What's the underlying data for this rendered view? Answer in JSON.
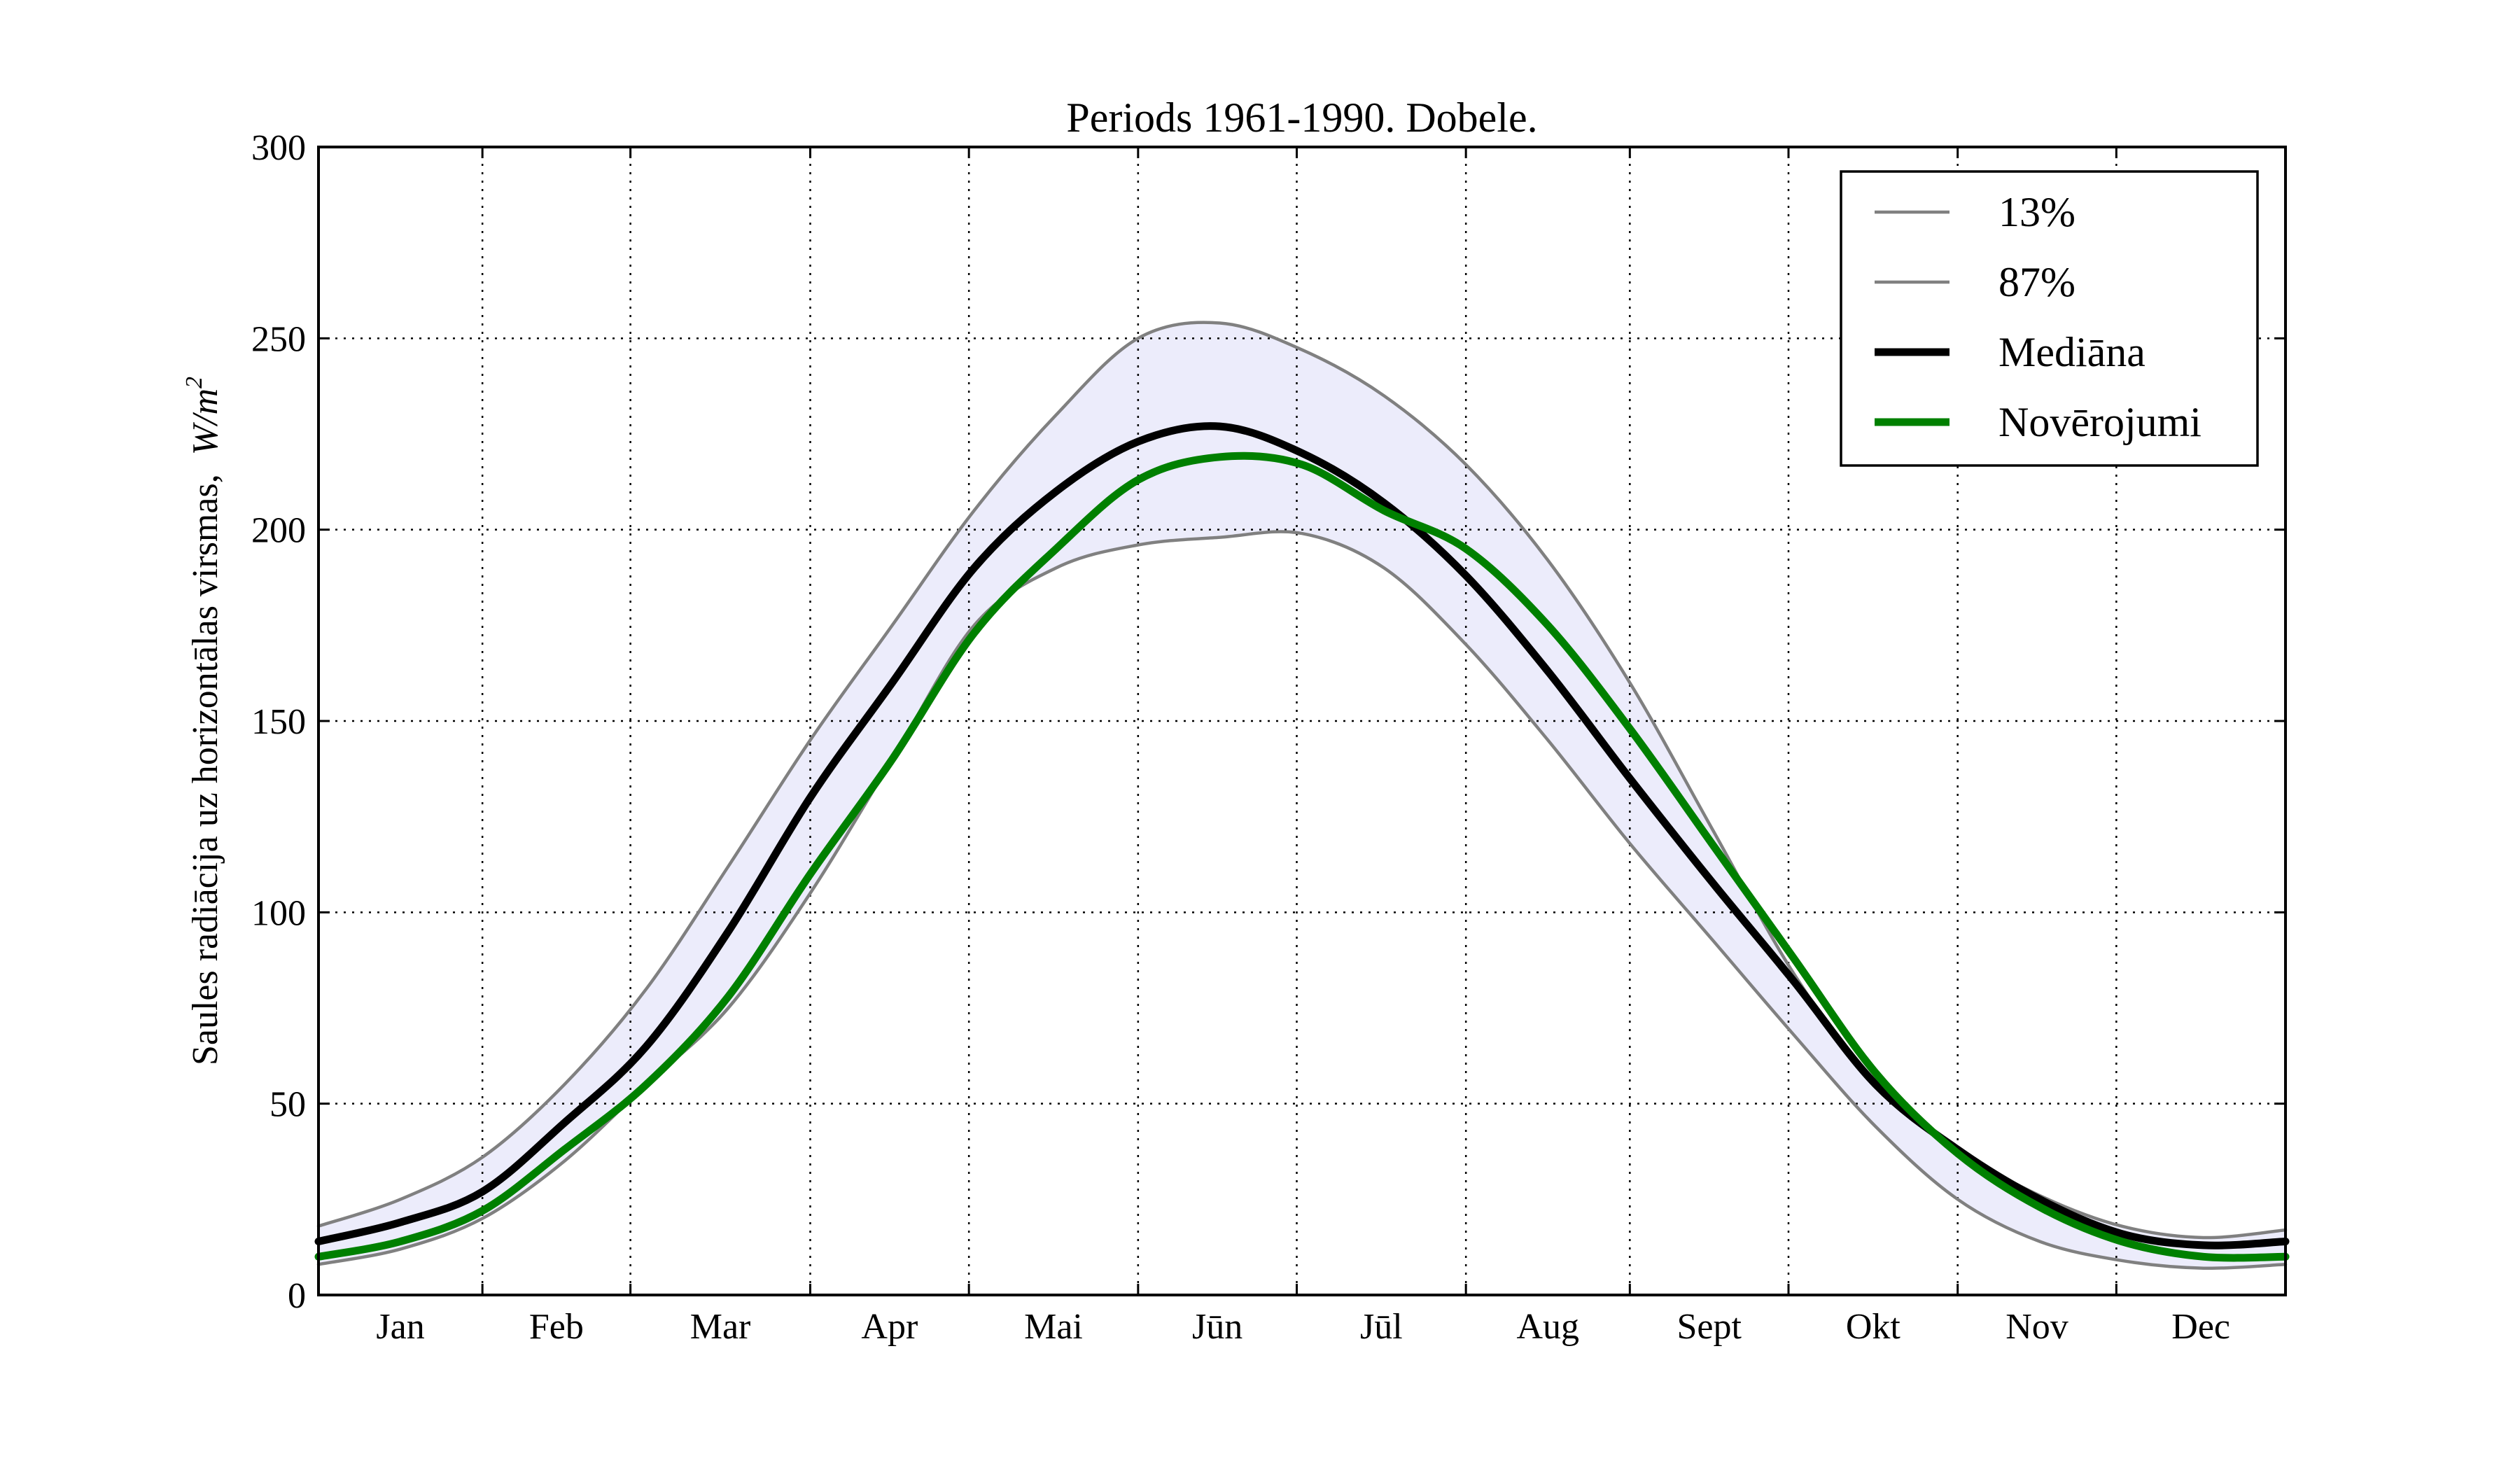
{
  "chart_data": {
    "type": "line",
    "title": "Periods 1961-1990. Dobele.",
    "ylabel": "Saules radiācija uz horizontālas virsmas,",
    "ylabel_unit": "W/m",
    "ylabel_unit_exp": "2",
    "ylim": [
      0,
      300
    ],
    "xlim": [
      0,
      12
    ],
    "yticks": [
      0,
      50,
      100,
      150,
      200,
      250,
      300
    ],
    "month_boundaries": [
      0,
      1,
      1.903,
      3,
      3.968,
      5,
      5.968,
      7,
      8,
      8.968,
      10,
      10.968,
      12
    ],
    "months": [
      "Jan",
      "Feb",
      "Mar",
      "Apr",
      "Mai",
      "Jūn",
      "Jūl",
      "Aug",
      "Sept",
      "Okt",
      "Nov",
      "Dec"
    ],
    "grid": true,
    "legend_position": "top-right",
    "band": {
      "lower_series": "13%",
      "upper_series": "87%",
      "color": "#ececfb"
    },
    "x": [
      0,
      0.5,
      1,
      1.5,
      2,
      2.5,
      3,
      3.5,
      4,
      4.5,
      5,
      5.5,
      6,
      6.5,
      7,
      7.5,
      8,
      8.5,
      9,
      9.5,
      10,
      10.5,
      11,
      11.5,
      12
    ],
    "series": [
      {
        "name": "13%",
        "color": "#808080",
        "width": 4.5,
        "values": [
          8,
          12,
          20,
          35,
          55,
          75,
          105,
          140,
          175,
          190,
          196,
          198,
          199,
          190,
          170,
          145,
          118,
          93,
          68,
          44,
          25,
          14,
          9,
          7,
          8
        ]
      },
      {
        "name": "87%",
        "color": "#808080",
        "width": 4.5,
        "values": [
          18,
          25,
          36,
          55,
          80,
          112,
          145,
          175,
          205,
          230,
          250,
          254,
          247,
          235,
          217,
          192,
          160,
          122,
          84,
          55,
          38,
          26,
          18,
          15,
          17
        ]
      },
      {
        "name": "Mediāna",
        "color": "#000000",
        "width": 11,
        "values": [
          14,
          19,
          27,
          45,
          65,
          95,
          130,
          160,
          190,
          210,
          223,
          227,
          220,
          207,
          188,
          163,
          135,
          108,
          82,
          55,
          38,
          25,
          16,
          13,
          14
        ]
      },
      {
        "name": "Novērojumi",
        "color": "#008000",
        "width": 11,
        "values": [
          10,
          14,
          22,
          38,
          55,
          78,
          110,
          140,
          173,
          195,
          213,
          219,
          217,
          205,
          195,
          175,
          148,
          118,
          88,
          58,
          37,
          23,
          14,
          10,
          10
        ]
      }
    ]
  }
}
